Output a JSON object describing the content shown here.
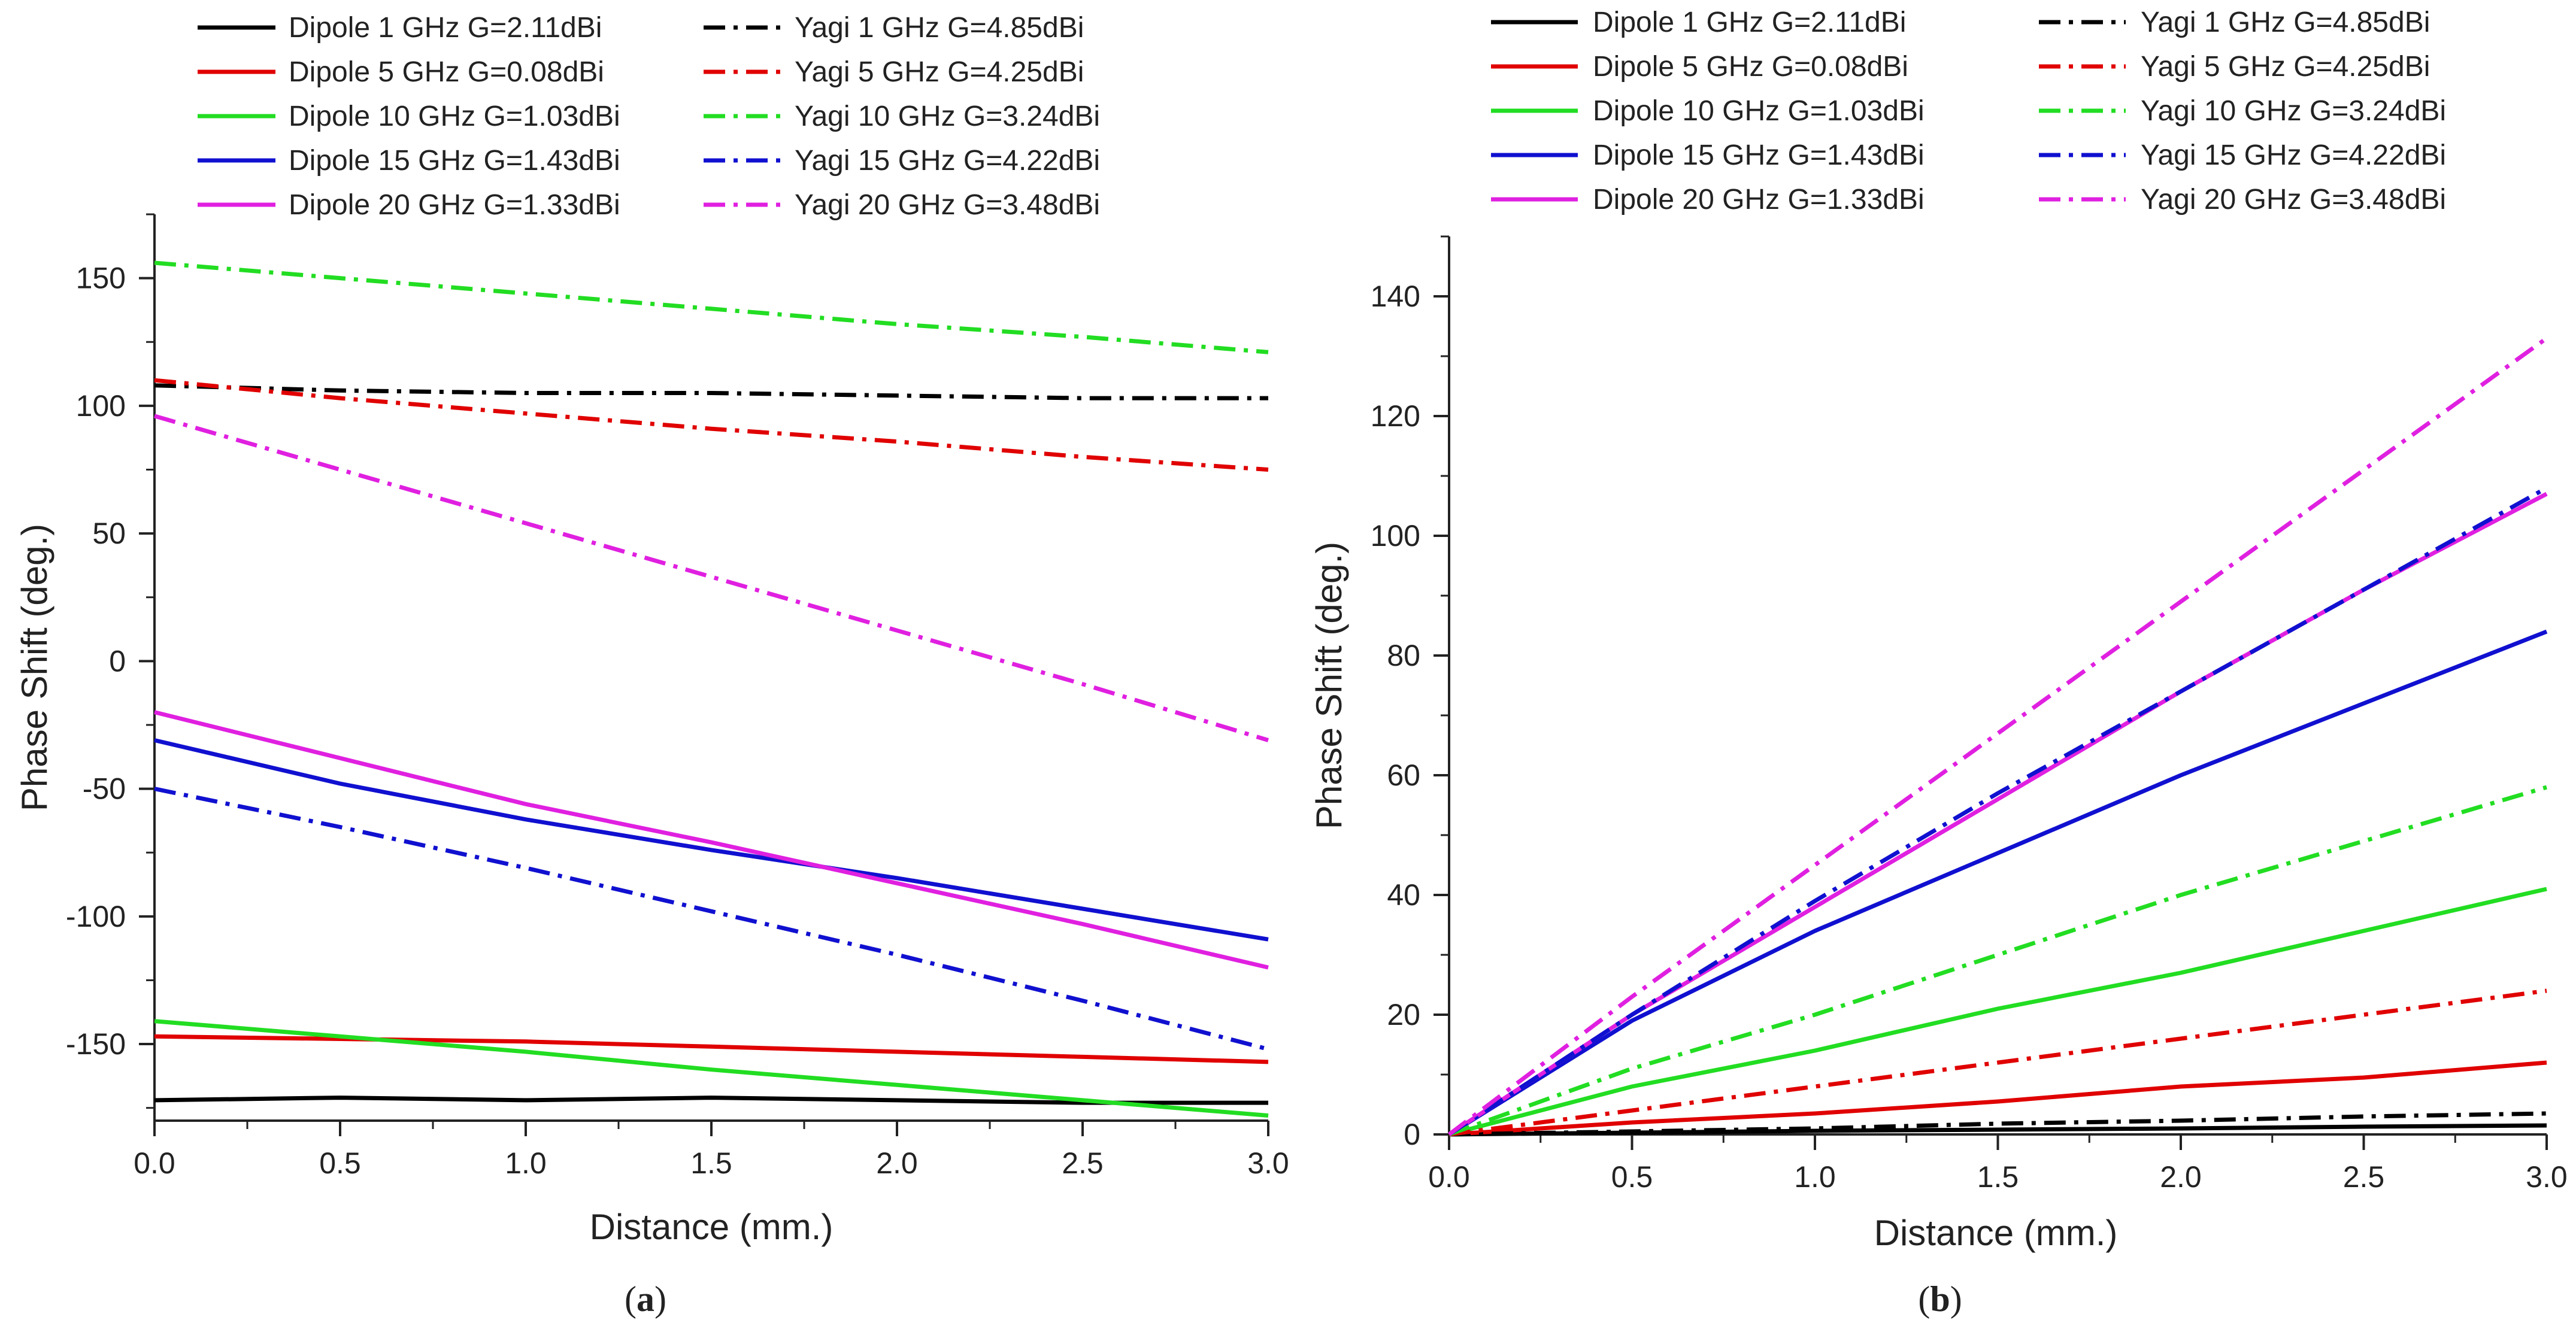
{
  "chart_data": [
    {
      "type": "line",
      "panel": "a",
      "caption_letter": "a",
      "xlabel": "Distance (mm.)",
      "ylabel": "Phase Shift (deg.)",
      "xlim": [
        0,
        3
      ],
      "ylim": [
        -180,
        175
      ],
      "xticks": [
        "0.0",
        "0.5",
        "1.0",
        "1.5",
        "2.0",
        "2.5",
        "3.0"
      ],
      "xtick_values": [
        0,
        0.5,
        1,
        1.5,
        2,
        2.5,
        3
      ],
      "yticks": [
        "-150",
        "-100",
        "-50",
        "0",
        "50",
        "100",
        "150"
      ],
      "ytick_values": [
        -150,
        -100,
        -50,
        0,
        50,
        100,
        150
      ],
      "legend_position": "top",
      "series": [
        {
          "name": "Dipole 1 GHz G=2.11dBi",
          "color": "#000000",
          "style": "solid",
          "x": [
            0,
            0.5,
            1,
            1.5,
            2,
            2.5,
            3
          ],
          "y": [
            -172,
            -171,
            -172,
            -171,
            -172,
            -173,
            -173
          ]
        },
        {
          "name": "Dipole 5 GHz G=0.08dBi",
          "color": "#e00000",
          "style": "solid",
          "x": [
            0,
            0.5,
            1,
            1.5,
            2,
            2.5,
            3
          ],
          "y": [
            -147,
            -148,
            -149,
            -151,
            -153,
            -155,
            -157
          ]
        },
        {
          "name": "Dipole 10 GHz G=1.03dBi",
          "color": "#22dd22",
          "style": "solid",
          "x": [
            0,
            0.5,
            1,
            1.5,
            2,
            2.5,
            3
          ],
          "y": [
            -141,
            -147,
            -153,
            -160,
            -166,
            -172,
            -178
          ]
        },
        {
          "name": "Dipole 15 GHz G=1.43dBi",
          "color": "#1010d0",
          "style": "solid",
          "x": [
            0,
            0.5,
            1,
            1.5,
            2,
            2.5,
            3
          ],
          "y": [
            -31,
            -48,
            -62,
            -74,
            -85,
            -97,
            -109
          ]
        },
        {
          "name": "Dipole 20 GHz G=1.33dBi",
          "color": "#e020e0",
          "style": "solid",
          "x": [
            0,
            0.5,
            1,
            1.5,
            2,
            2.5,
            3
          ],
          "y": [
            -20,
            -38,
            -56,
            -71,
            -87,
            -103,
            -120
          ]
        },
        {
          "name": "Yagi 1 GHz G=4.85dBi",
          "color": "#000000",
          "style": "dashdot",
          "x": [
            0,
            0.5,
            1,
            1.5,
            2,
            2.5,
            3
          ],
          "y": [
            108,
            106,
            105,
            105,
            104,
            103,
            103
          ]
        },
        {
          "name": "Yagi 5 GHz G=4.25dBi",
          "color": "#e00000",
          "style": "dashdot",
          "x": [
            0,
            0.5,
            1,
            1.5,
            2,
            2.5,
            3
          ],
          "y": [
            110,
            103,
            97,
            91,
            86,
            80,
            75
          ]
        },
        {
          "name": "Yagi 10 GHz G=3.24dBi",
          "color": "#22dd22",
          "style": "dashdot",
          "x": [
            0,
            0.5,
            1,
            1.5,
            2,
            2.5,
            3
          ],
          "y": [
            156,
            150,
            144,
            138,
            132,
            127,
            121
          ]
        },
        {
          "name": "Yagi 15 GHz G=4.22dBi",
          "color": "#1010d0",
          "style": "dashdot",
          "x": [
            0,
            0.5,
            1,
            1.5,
            2,
            2.5,
            3
          ],
          "y": [
            -50,
            -65,
            -81,
            -98,
            -115,
            -133,
            -152
          ]
        },
        {
          "name": "Yagi 20 GHz G=3.48dBi",
          "color": "#e020e0",
          "style": "dashdot",
          "x": [
            0,
            0.5,
            1,
            1.5,
            2,
            2.5,
            3
          ],
          "y": [
            96,
            75,
            54,
            33,
            12,
            -9,
            -31
          ]
        }
      ]
    },
    {
      "type": "line",
      "panel": "b",
      "caption_letter": "b",
      "xlabel": "Distance (mm.)",
      "ylabel": "Phase Shift (deg.)",
      "xlim": [
        0,
        3
      ],
      "ylim": [
        0,
        150
      ],
      "xticks": [
        "0.0",
        "0.5",
        "1.0",
        "1.5",
        "2.0",
        "2.5",
        "3.0"
      ],
      "xtick_values": [
        0,
        0.5,
        1,
        1.5,
        2,
        2.5,
        3
      ],
      "yticks": [
        "0",
        "20",
        "40",
        "60",
        "80",
        "100",
        "120",
        "140"
      ],
      "ytick_values": [
        0,
        20,
        40,
        60,
        80,
        100,
        120,
        140
      ],
      "legend_position": "top",
      "series": [
        {
          "name": "Dipole 1 GHz G=2.11dBi",
          "color": "#000000",
          "style": "solid",
          "x": [
            0,
            0.5,
            1,
            1.5,
            2,
            2.5,
            3
          ],
          "y": [
            0,
            0.3,
            0.6,
            0.8,
            1.0,
            1.3,
            1.5
          ]
        },
        {
          "name": "Dipole 5 GHz G=0.08dBi",
          "color": "#e00000",
          "style": "solid",
          "x": [
            0,
            0.5,
            1,
            1.5,
            2,
            2.5,
            3
          ],
          "y": [
            0,
            2,
            3.5,
            5.5,
            8,
            9.5,
            12
          ]
        },
        {
          "name": "Dipole 10 GHz G=1.03dBi",
          "color": "#22dd22",
          "style": "solid",
          "x": [
            0,
            0.5,
            1,
            1.5,
            2,
            2.5,
            3
          ],
          "y": [
            0,
            8,
            14,
            21,
            27,
            34,
            41
          ]
        },
        {
          "name": "Dipole 15 GHz G=1.43dBi",
          "color": "#1010d0",
          "style": "solid",
          "x": [
            0,
            0.5,
            1,
            1.5,
            2,
            2.5,
            3
          ],
          "y": [
            0,
            19,
            34,
            47,
            60,
            72,
            84
          ]
        },
        {
          "name": "Dipole 20 GHz G=1.33dBi",
          "color": "#e020e0",
          "style": "solid",
          "x": [
            0,
            0.5,
            1,
            1.5,
            2,
            2.5,
            3
          ],
          "y": [
            0,
            20,
            38,
            56,
            74,
            91,
            107
          ]
        },
        {
          "name": "Yagi 1 GHz G=4.85dBi",
          "color": "#000000",
          "style": "dashdot",
          "x": [
            0,
            0.5,
            1,
            1.5,
            2,
            2.5,
            3
          ],
          "y": [
            0,
            0.5,
            1,
            1.8,
            2.3,
            3,
            3.5
          ]
        },
        {
          "name": "Yagi 5 GHz G=4.25dBi",
          "color": "#e00000",
          "style": "dashdot",
          "x": [
            0,
            0.5,
            1,
            1.5,
            2,
            2.5,
            3
          ],
          "y": [
            0,
            4,
            8,
            12,
            16,
            20,
            24
          ]
        },
        {
          "name": "Yagi 10 GHz G=3.24dBi",
          "color": "#22dd22",
          "style": "dashdot",
          "x": [
            0,
            0.5,
            1,
            1.5,
            2,
            2.5,
            3
          ],
          "y": [
            0,
            11,
            20,
            30,
            40,
            49,
            58
          ]
        },
        {
          "name": "Yagi 15 GHz G=4.22dBi",
          "color": "#1010d0",
          "style": "dashdot",
          "x": [
            0,
            0.5,
            1,
            1.5,
            2,
            2.5,
            3
          ],
          "y": [
            0,
            20,
            39,
            57,
            74,
            91,
            108
          ]
        },
        {
          "name": "Yagi 20 GHz G=3.48dBi",
          "color": "#e020e0",
          "style": "dashdot",
          "x": [
            0,
            0.5,
            1,
            1.5,
            2,
            2.5,
            3
          ],
          "y": [
            0,
            23,
            45,
            67,
            89,
            111,
            133
          ]
        }
      ]
    }
  ]
}
